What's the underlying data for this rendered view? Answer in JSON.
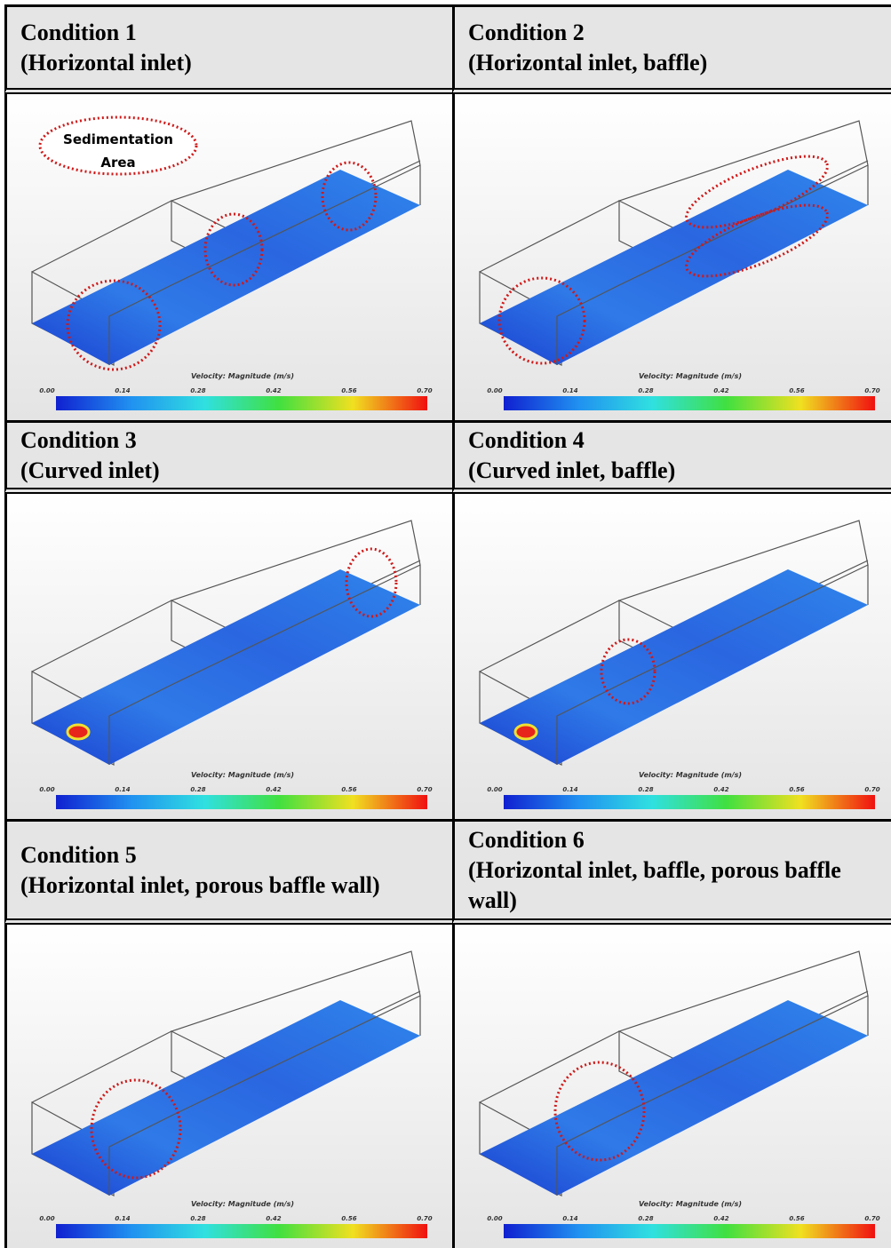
{
  "conditions": [
    {
      "title": "Condition 1",
      "subtitle": "(Horizontal inlet)",
      "annotation": [
        "Sedimentation",
        "Area"
      ],
      "legend_title": "Velocity: Magnitude (m/s)",
      "legend_ticks": [
        "0.00",
        "0.14",
        "0.28",
        "0.42",
        "0.56",
        "0.70"
      ]
    },
    {
      "title": "Condition 2",
      "subtitle": "(Horizontal inlet, baffle)",
      "legend_title": "Velocity: Magnitude (m/s)",
      "legend_ticks": [
        "0.00",
        "0.14",
        "0.28",
        "0.42",
        "0.56",
        "0.70"
      ]
    },
    {
      "title": "Condition 3",
      "subtitle": "(Curved inlet)",
      "legend_title": "Velocity: Magnitude (m/s)",
      "legend_ticks": [
        "0.00",
        "0.14",
        "0.28",
        "0.42",
        "0.56",
        "0.70"
      ]
    },
    {
      "title": "Condition 4",
      "subtitle": "(Curved inlet, baffle)",
      "legend_title": "Velocity: Magnitude (m/s)",
      "legend_ticks": [
        "0.00",
        "0.14",
        "0.28",
        "0.42",
        "0.56",
        "0.70"
      ]
    },
    {
      "title": "Condition 5",
      "subtitle": "(Horizontal inlet, porous baffle wall)",
      "legend_title": "Velocity: Magnitude (m/s)",
      "legend_ticks": [
        "0.00",
        "0.14",
        "0.28",
        "0.42",
        "0.56",
        "0.70"
      ]
    },
    {
      "title": "Condition 6",
      "subtitle": "(Horizontal inlet, baffle, porous baffle wall)",
      "legend_title": "Velocity: Magnitude (m/s)",
      "legend_ticks": [
        "0.00",
        "0.14",
        "0.28",
        "0.42",
        "0.56",
        "0.70"
      ]
    }
  ]
}
